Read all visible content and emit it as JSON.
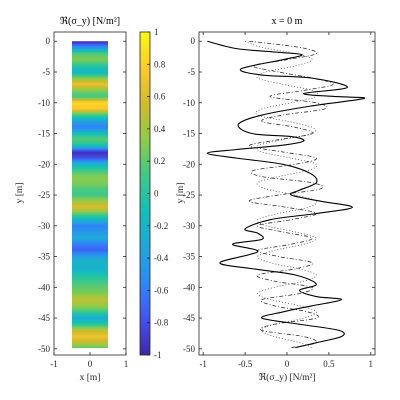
{
  "chart_data": [
    {
      "type": "heatmap",
      "title": "ℜ(σ_y) [N/m²]",
      "xlabel": "x [m]",
      "ylabel": "y [m]",
      "xlim": [
        -1,
        1
      ],
      "ylim": [
        -51,
        1.5
      ],
      "band_x_range": [
        -0.5,
        0.5
      ],
      "band_y_range": [
        -49.8,
        0
      ],
      "xticks": [
        -1,
        0,
        1
      ],
      "yticks": [
        0,
        -5,
        -10,
        -15,
        -20,
        -25,
        -30,
        -35,
        -40,
        -45,
        -50
      ],
      "colorbar": {
        "ticks": [
          1,
          0.8,
          0.6,
          0.4,
          0.2,
          0,
          -0.2,
          -0.4,
          -0.6,
          -0.8,
          -1
        ],
        "range": [
          -1,
          1
        ],
        "colors": [
          "#3e26a8",
          "#4352f2",
          "#2d89f7",
          "#1fa7d9",
          "#12bfb9",
          "#3dc987",
          "#8ecc48",
          "#d1bb2c",
          "#feca2c",
          "#f9fb0e"
        ]
      },
      "y": [
        0.0,
        -1.0,
        -2.0,
        -3.0,
        -4.0,
        -5.0,
        -6.0,
        -7.0,
        -8.0,
        -9.0,
        -10.0,
        -11.0,
        -12.0,
        -13.0,
        -14.0,
        -15.0,
        -16.0,
        -17.0,
        -18.0,
        -19.0,
        -20.0,
        -21.0,
        -22.0,
        -23.0,
        -24.0,
        -25.0,
        -26.0,
        -27.0,
        -28.0,
        -29.0,
        -30.0,
        -31.0,
        -32.0,
        -33.0,
        -34.0,
        -35.0,
        -36.0,
        -37.0,
        -38.0,
        -39.0,
        -40.0,
        -41.0,
        -42.0,
        -43.0,
        -44.0,
        -45.0,
        -46.0,
        -47.0,
        -48.0,
        -49.0,
        -49.8
      ],
      "values": [
        -1.0,
        -0.5,
        0.16,
        0.3,
        0.02,
        -0.2,
        0.3,
        0.7,
        0.3,
        0.1,
        0.85,
        0.75,
        0.1,
        -0.35,
        -0.6,
        -0.1,
        0.2,
        -0.1,
        -0.95,
        -0.8,
        -0.2,
        0.1,
        0.3,
        0.3,
        0.15,
        0.1,
        0.4,
        0.6,
        0.2,
        -0.2,
        -0.6,
        -0.45,
        -0.3,
        -0.6,
        -0.7,
        -0.4,
        -0.2,
        -0.25,
        -0.05,
        0.1,
        0.2,
        0.3,
        0.5,
        0.35,
        0.1,
        -0.3,
        0.0,
        0.5,
        0.7,
        0.5,
        0.2
      ]
    },
    {
      "type": "line",
      "title": "x = 0 m",
      "xlabel": "ℜ(σ_y) [N/m²]",
      "ylabel": "y [m]",
      "xlim": [
        -1.05,
        1.05
      ],
      "ylim": [
        -51,
        1.5
      ],
      "xticks": [
        -1,
        -0.5,
        0,
        0.5,
        1
      ],
      "yticks": [
        0,
        -5,
        -10,
        -15,
        -20,
        -25,
        -30,
        -35,
        -40,
        -45,
        -50
      ],
      "series": [
        {
          "style": "solid",
          "color": "#000000",
          "points": [
            [
              -0.95,
              0
            ],
            [
              -0.6,
              -1.2
            ],
            [
              -0.1,
              -1.8
            ],
            [
              0.18,
              -2.2
            ],
            [
              -0.05,
              -3.0
            ],
            [
              -0.55,
              -4.5
            ],
            [
              -0.3,
              -5.5
            ],
            [
              0.3,
              -6.0
            ],
            [
              0.72,
              -7.5
            ],
            [
              0.2,
              -8.5
            ],
            [
              0.6,
              -9.0
            ],
            [
              0.92,
              -9.3
            ],
            [
              0.3,
              -10.5
            ],
            [
              -0.3,
              -12.0
            ],
            [
              -0.58,
              -13.5
            ],
            [
              -0.42,
              -15.0
            ],
            [
              0.05,
              -15.5
            ],
            [
              0.2,
              -16.2
            ],
            [
              -0.05,
              -16.9
            ],
            [
              -0.6,
              -17.6
            ],
            [
              -0.95,
              -18.2
            ],
            [
              -0.6,
              -19.0
            ],
            [
              -0.05,
              -20.0
            ],
            [
              0.28,
              -21.5
            ],
            [
              0.35,
              -23.0
            ],
            [
              0.15,
              -24.2
            ],
            [
              0.05,
              -25.0
            ],
            [
              0.4,
              -26.0
            ],
            [
              0.78,
              -27.0
            ],
            [
              0.35,
              -28.0
            ],
            [
              -0.2,
              -29.0
            ],
            [
              -0.5,
              -30.5
            ],
            [
              -0.35,
              -31.2
            ],
            [
              -0.3,
              -32.2
            ],
            [
              -0.65,
              -33.0
            ],
            [
              -0.35,
              -34.2
            ],
            [
              -0.8,
              -36.0
            ],
            [
              -0.4,
              -37.0
            ],
            [
              0.1,
              -38.0
            ],
            [
              0.35,
              -39.5
            ],
            [
              0.15,
              -40.5
            ],
            [
              0.35,
              -41.5
            ],
            [
              0.65,
              -42.0
            ],
            [
              0.3,
              -43.0
            ],
            [
              -0.05,
              -44.0
            ],
            [
              -0.3,
              -45.0
            ],
            [
              0.15,
              -46.0
            ],
            [
              0.62,
              -47.0
            ],
            [
              0.65,
              -48.0
            ],
            [
              0.35,
              -49.0
            ],
            [
              0.1,
              -49.8
            ]
          ]
        },
        {
          "style": "dash-dot",
          "color": "#333333",
          "points": [
            [
              -0.45,
              0
            ],
            [
              0.15,
              -1.0
            ],
            [
              0.35,
              -2.0
            ],
            [
              0.0,
              -3.0
            ],
            [
              -0.4,
              -4.0
            ],
            [
              -0.1,
              -5.0
            ],
            [
              0.3,
              -6.0
            ],
            [
              0.55,
              -7.0
            ],
            [
              0.2,
              -8.0
            ],
            [
              -0.2,
              -9.0
            ],
            [
              0.35,
              -10.0
            ],
            [
              0.45,
              -11.0
            ],
            [
              -0.05,
              -12.0
            ],
            [
              -0.3,
              -13.0
            ],
            [
              0.1,
              -14.0
            ],
            [
              0.3,
              -15.0
            ],
            [
              -0.1,
              -16.0
            ],
            [
              -0.45,
              -17.0
            ],
            [
              -0.05,
              -18.0
            ],
            [
              0.35,
              -19.0
            ],
            [
              0.1,
              -20.0
            ],
            [
              -0.4,
              -21.0
            ],
            [
              -0.3,
              -22.0
            ],
            [
              0.3,
              -23.0
            ],
            [
              0.4,
              -24.0
            ],
            [
              -0.1,
              -25.0
            ],
            [
              -0.45,
              -26.0
            ],
            [
              0.0,
              -27.0
            ],
            [
              0.35,
              -28.0
            ],
            [
              0.05,
              -29.0
            ],
            [
              -0.35,
              -30.0
            ],
            [
              -0.05,
              -31.0
            ],
            [
              0.3,
              -32.0
            ],
            [
              0.05,
              -33.0
            ],
            [
              -0.35,
              -34.0
            ],
            [
              -0.1,
              -35.0
            ],
            [
              0.3,
              -36.0
            ],
            [
              0.1,
              -37.0
            ],
            [
              -0.35,
              -38.0
            ],
            [
              -0.15,
              -39.0
            ],
            [
              0.3,
              -40.0
            ],
            [
              0.15,
              -41.0
            ],
            [
              -0.3,
              -42.0
            ],
            [
              -0.15,
              -43.0
            ],
            [
              0.25,
              -44.0
            ],
            [
              0.35,
              -45.0
            ],
            [
              -0.15,
              -46.0
            ],
            [
              -0.3,
              -47.0
            ],
            [
              0.2,
              -48.0
            ],
            [
              0.35,
              -49.0
            ],
            [
              0.05,
              -49.8
            ]
          ]
        },
        {
          "style": "dotted",
          "color": "#555555",
          "points": [
            [
              -0.5,
              0
            ],
            [
              -0.3,
              -1.0
            ],
            [
              0.1,
              -2.0
            ],
            [
              0.3,
              -3.0
            ],
            [
              0.1,
              -4.0
            ],
            [
              -0.25,
              -5.0
            ],
            [
              -0.35,
              -6.0
            ],
            [
              -0.05,
              -7.0
            ],
            [
              0.3,
              -8.0
            ],
            [
              0.35,
              -9.0
            ],
            [
              0.05,
              -10.0
            ],
            [
              -0.3,
              -11.0
            ],
            [
              -0.35,
              -12.0
            ],
            [
              0.0,
              -13.0
            ],
            [
              0.3,
              -14.0
            ],
            [
              0.3,
              -15.0
            ],
            [
              -0.05,
              -16.0
            ],
            [
              -0.35,
              -17.0
            ],
            [
              -0.3,
              -18.0
            ],
            [
              0.05,
              -19.0
            ],
            [
              0.35,
              -20.0
            ],
            [
              0.25,
              -21.0
            ],
            [
              -0.1,
              -22.0
            ],
            [
              -0.35,
              -23.0
            ],
            [
              -0.25,
              -24.0
            ],
            [
              0.1,
              -25.0
            ],
            [
              0.35,
              -26.0
            ],
            [
              0.25,
              -27.0
            ],
            [
              -0.1,
              -28.0
            ],
            [
              -0.35,
              -29.0
            ],
            [
              -0.25,
              -30.0
            ],
            [
              0.1,
              -31.0
            ],
            [
              0.35,
              -32.0
            ],
            [
              0.2,
              -33.0
            ],
            [
              -0.15,
              -34.0
            ],
            [
              -0.35,
              -35.0
            ],
            [
              -0.2,
              -36.0
            ],
            [
              0.15,
              -37.0
            ],
            [
              0.35,
              -38.0
            ],
            [
              0.2,
              -39.0
            ],
            [
              -0.15,
              -40.0
            ],
            [
              -0.35,
              -41.0
            ],
            [
              -0.2,
              -42.0
            ],
            [
              0.15,
              -43.0
            ],
            [
              0.35,
              -44.0
            ],
            [
              0.2,
              -45.0
            ],
            [
              -0.15,
              -46.0
            ],
            [
              -0.3,
              -47.0
            ],
            [
              -0.15,
              -48.0
            ],
            [
              0.15,
              -49.0
            ],
            [
              0.3,
              -49.8
            ]
          ]
        }
      ]
    }
  ]
}
